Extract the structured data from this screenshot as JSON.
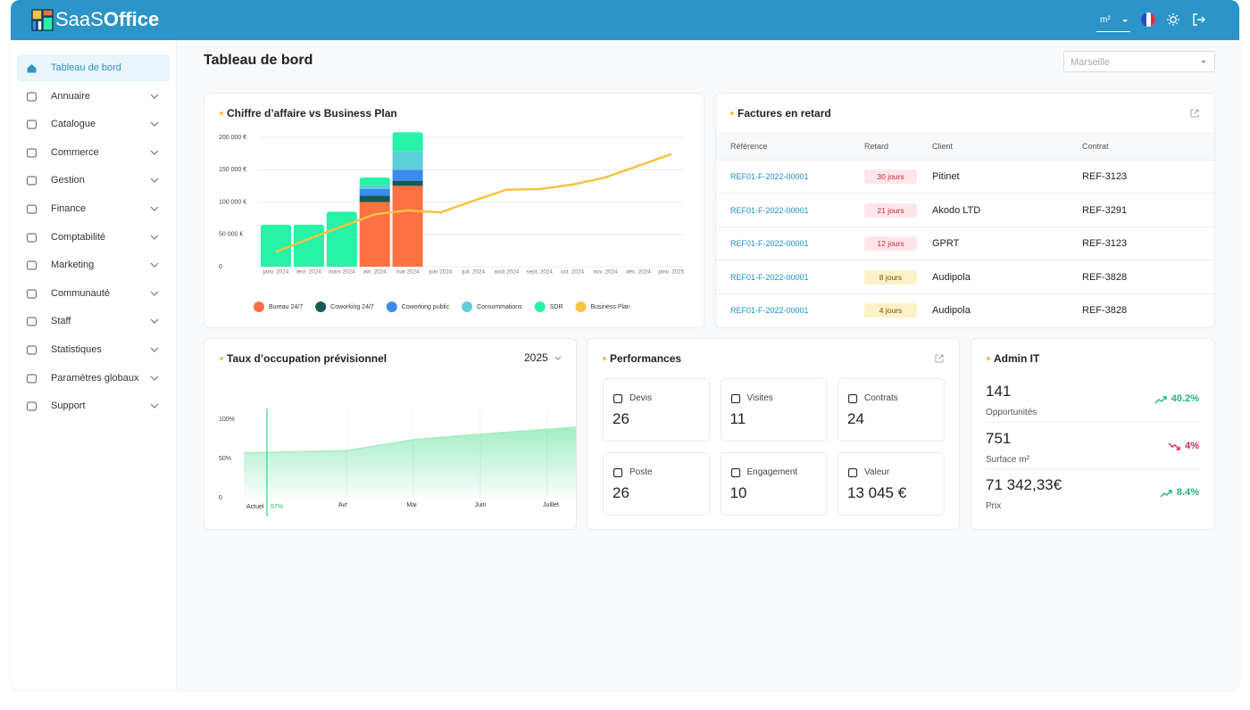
{
  "header": {
    "logo_light": "SaaS",
    "logo_bold": "Office",
    "unit": "m²"
  },
  "sidebar": {
    "active": 0,
    "items": [
      "Tableau de bord",
      "Annuaire",
      "Catalogue",
      "Commerce",
      "Gestion",
      "Finance",
      "Comptabilité",
      "Marketing",
      "Communauté",
      "Staff",
      "Statistiques",
      "Paramètres globaux",
      "Support"
    ]
  },
  "page": {
    "title": "Tableau de bord",
    "city": "Marseille"
  },
  "chart_data": [
    {
      "type": "bar",
      "stacked": true,
      "title": "Chiffre d’affaire vs Business Plan",
      "categories": [
        "janv. 2024",
        "févr. 2024",
        "mars 2024",
        "avr. 2024",
        "mai 2024",
        "juin 2024",
        "juil. 2024",
        "août 2024",
        "sept. 2024",
        "oct. 2024",
        "nov. 2024",
        "déc. 2024",
        "janv. 2025"
      ],
      "ylim": [
        0,
        200000
      ],
      "yticks": [
        0,
        {
          "value": 50000,
          "label": "50 000 €"
        },
        {
          "value": 100000,
          "label": "100 000 €"
        },
        {
          "value": 150000,
          "label": "150 000 €"
        },
        {
          "value": 200000,
          "label": "200 000 €"
        }
      ],
      "grid": true,
      "series": [
        {
          "name": "Bureau 24/7",
          "color": "#ff7143",
          "type": "bar",
          "values": [
            0,
            0,
            0,
            100000,
            125000,
            null,
            null,
            null,
            null,
            null,
            null,
            null,
            null
          ]
        },
        {
          "name": "Coworking 24/7",
          "color": "#175a55",
          "type": "bar",
          "values": [
            0,
            0,
            0,
            10000,
            8000,
            null,
            null,
            null,
            null,
            null,
            null,
            null,
            null
          ]
        },
        {
          "name": "Coworking public",
          "color": "#3d8bef",
          "type": "bar",
          "values": [
            0,
            0,
            0,
            10000,
            17000,
            null,
            null,
            null,
            null,
            null,
            null,
            null,
            null
          ]
        },
        {
          "name": "Consommations",
          "color": "#5ccfda",
          "type": "bar",
          "values": [
            0,
            0,
            0,
            6000,
            29000,
            null,
            null,
            null,
            null,
            null,
            null,
            null,
            null
          ]
        },
        {
          "name": "SDR",
          "color": "#27f2a6",
          "type": "bar",
          "values": [
            65000,
            65000,
            85000,
            12000,
            29000,
            null,
            null,
            null,
            null,
            null,
            null,
            null,
            null
          ]
        },
        {
          "name": "Business Plan",
          "color": "#f6c343",
          "type": "line",
          "values": [
            23000,
            43000,
            62000,
            81000,
            87000,
            84000,
            102000,
            119000,
            120000,
            127000,
            138000,
            156000,
            174000
          ]
        }
      ]
    },
    {
      "type": "area",
      "title": "Taux d’occupation prévisionnel",
      "period": "2025",
      "categories": [
        "Actuel",
        "Avr",
        "Mai",
        "Juin",
        "Juillet"
      ],
      "values": [
        57,
        60,
        74,
        81,
        90
      ],
      "value_labels": [
        "57%",
        null,
        null,
        null,
        null
      ],
      "color": "#34d67f",
      "ylim": [
        0,
        100
      ],
      "yticks": [
        0,
        {
          "value": 50,
          "label": "50%"
        },
        {
          "value": 100,
          "label": "100%"
        }
      ],
      "grid": false
    }
  ],
  "invoices": {
    "title": "Factures en retard",
    "columns": [
      "Référence",
      "Retard",
      "Client",
      "Contrat"
    ],
    "rows": [
      {
        "reference": "REF01-F-2022-00001",
        "delay": "30 jours",
        "badge": "red",
        "client": "Pitinet",
        "contract": "REF-3123"
      },
      {
        "reference": "REF01-F-2022-00001",
        "delay": "21 jours",
        "badge": "red",
        "client": "Akodo LTD",
        "contract": "REF-3291"
      },
      {
        "reference": "REF01-F-2022-00001",
        "delay": "12 jours",
        "badge": "red",
        "client": "GPRT",
        "contract": "REF-3123"
      },
      {
        "reference": "REF01-F-2022-00001",
        "delay": "8 jours",
        "badge": "yellow",
        "client": "Audipola",
        "contract": "REF-3828"
      },
      {
        "reference": "REF01-F-2022-00001",
        "delay": "4 jours",
        "badge": "yellow",
        "client": "Audipola",
        "contract": "REF-3828"
      }
    ]
  },
  "performances": {
    "title": "Performances",
    "items": [
      {
        "label": "Devis",
        "value": 26
      },
      {
        "label": "Visites",
        "value": 11
      },
      {
        "label": "Contrats",
        "value": 24
      },
      {
        "label": "Poste",
        "value": 26
      },
      {
        "label": "Engagement",
        "value": 10
      },
      {
        "label": "Valeur",
        "value": "13 045 €"
      }
    ]
  },
  "admin": {
    "title": "Admin IT",
    "items": [
      {
        "value": 141,
        "label": "Opportunités",
        "trend": "40.2%",
        "direction": "up"
      },
      {
        "value": 751,
        "label": "Surface m²",
        "trend": "4%",
        "direction": "down"
      },
      {
        "value": "71 342,33€",
        "label": "Prix",
        "trend": "8.4%",
        "direction": "up"
      }
    ]
  }
}
